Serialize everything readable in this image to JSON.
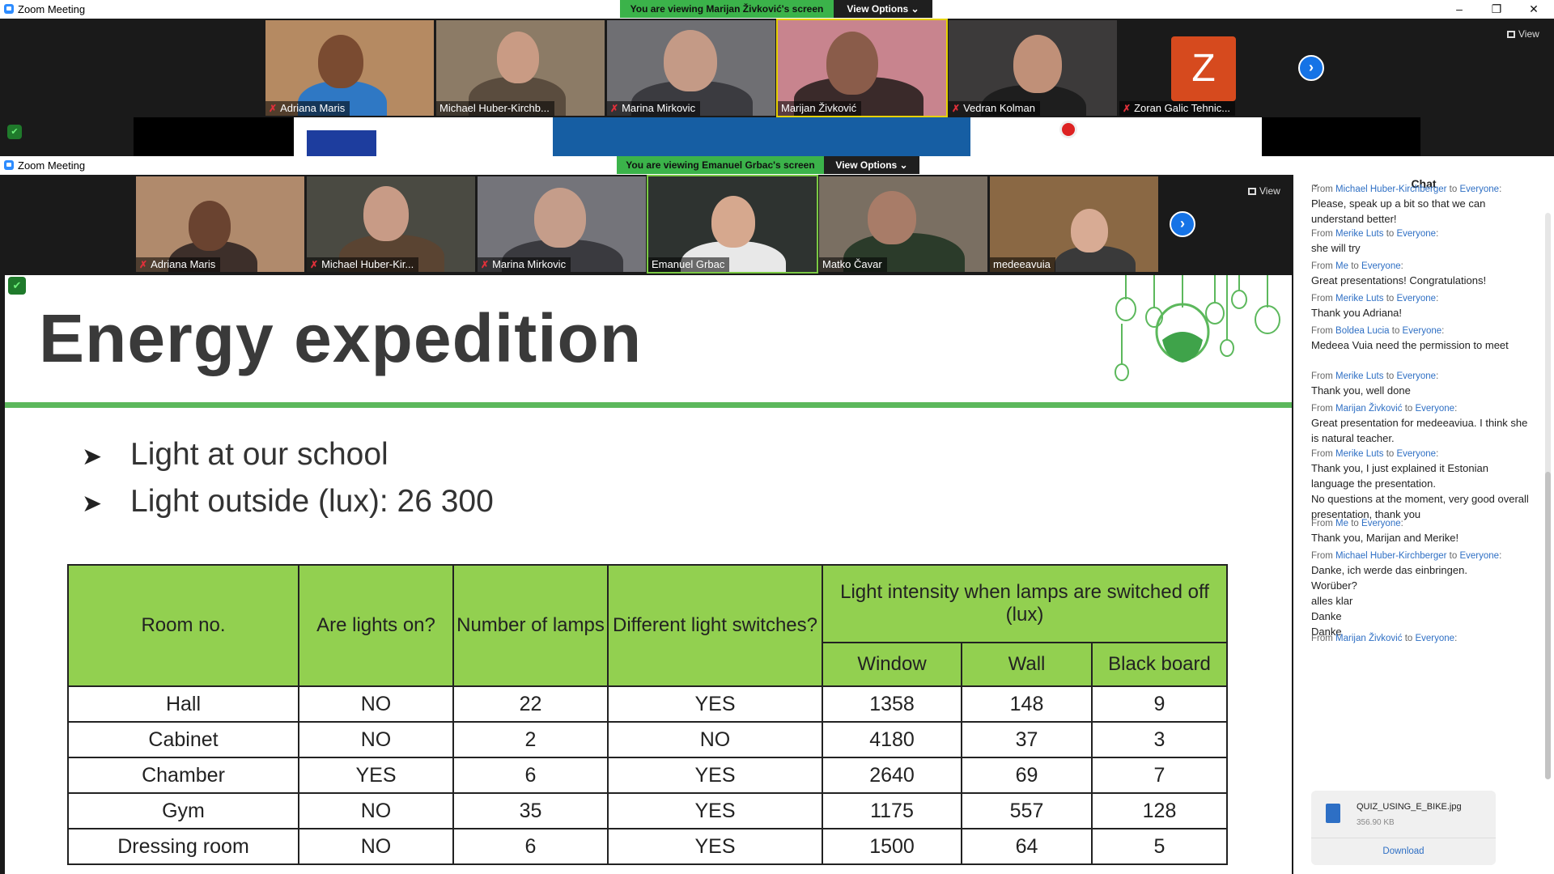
{
  "window1": {
    "title": "Zoom Meeting",
    "banner": "You are viewing Marijan Živković's screen",
    "view_options": "View Options",
    "view_label": "View",
    "participants": [
      {
        "name": "Adriana Maris",
        "muted": true
      },
      {
        "name": "Michael Huber-Kirchb...",
        "muted": false
      },
      {
        "name": "Marina Mirkovic",
        "muted": true
      },
      {
        "name": "Marijan Živković",
        "muted": false
      },
      {
        "name": "Vedran Kolman",
        "muted": true
      },
      {
        "name": "Zoran Galic Tehnic...",
        "muted": true
      }
    ],
    "avatar_letter": "Z"
  },
  "window2": {
    "title": "Zoom Meeting",
    "banner": "You are viewing Emanuel Grbac's screen",
    "view_options": "View Options",
    "view_label": "View",
    "participants": [
      {
        "name": "Adriana Maris",
        "muted": true
      },
      {
        "name": "Michael Huber-Kir...",
        "muted": true
      },
      {
        "name": "Marina Mirkovic",
        "muted": true
      },
      {
        "name": "Emanuel Grbac",
        "muted": false
      },
      {
        "name": "Matko Čavar",
        "muted": false
      },
      {
        "name": "medeeavuia",
        "muted": false
      }
    ]
  },
  "slide": {
    "title": "Energy expedition",
    "bullets": [
      "Light at our school",
      "Light outside (lux): 26 300"
    ],
    "table": {
      "headers": [
        "Room no.",
        "Are lights on?",
        "Number of lamps",
        "Different light switches?",
        "Light intensity when lamps are switched off (lux)"
      ],
      "subheaders": [
        "Window",
        "Wall",
        "Black board"
      ],
      "rows": [
        [
          "Hall",
          "NO",
          "22",
          "YES",
          "1358",
          "148",
          "9"
        ],
        [
          "Cabinet",
          "NO",
          "2",
          "NO",
          "4180",
          "37",
          "3"
        ],
        [
          "Chamber",
          "YES",
          "6",
          "YES",
          "2640",
          "69",
          "7"
        ],
        [
          "Gym",
          "NO",
          "35",
          "YES",
          "1175",
          "557",
          "128"
        ],
        [
          "Dressing room",
          "NO",
          "6",
          "YES",
          "1500",
          "64",
          "5"
        ]
      ]
    }
  },
  "chat": {
    "title": "Chat",
    "messages": [
      {
        "from": "Michael Huber-Kirchberger",
        "to": "Everyone",
        "text": "Please, speak up a bit so that we can understand better!"
      },
      {
        "from": "Merike Luts",
        "to": "Everyone",
        "text": "she will try"
      },
      {
        "from": "Me",
        "to": "Everyone",
        "text": "Great presentations! Congratulations!"
      },
      {
        "from": "Merike Luts",
        "to": "Everyone",
        "text": "Thank you Adriana!"
      },
      {
        "from": "Boldea Lucia",
        "to": "Everyone",
        "text": "Medeea Vuia need the permission to meet"
      },
      {
        "from": "Merike Luts",
        "to": "Everyone",
        "text": "Thank you, well done"
      },
      {
        "from": "Marijan Živković",
        "to": "Everyone",
        "text": "Great presentation for medeeaviua. I think she is natural teacher."
      },
      {
        "from": "Merike Luts",
        "to": "Everyone",
        "text": "Thank you, I just explained it Estonian language the presentation.\nNo questions at the moment, very good overall presentation, thank you"
      },
      {
        "from": "Me",
        "to": "Everyone",
        "text": "Thank you, Marijan and Merike!"
      },
      {
        "from": "Michael Huber-Kirchberger",
        "to": "Everyone",
        "text": "Danke, ich werde das einbringen.\nWorüber?\nalles klar\nDanke\nDanke"
      },
      {
        "from": "Marijan Živković",
        "to": "Everyone",
        "text": ""
      }
    ],
    "file": {
      "name": "QUIZ_USING_E_BIKE.jpg",
      "size": "356.90 KB",
      "action": "Download"
    },
    "from_label": "From",
    "to_label": "to"
  },
  "colors": {
    "banner_green": "#3bb34a",
    "table_header_green": "#92d050",
    "zoom_blue": "#1573e6"
  }
}
